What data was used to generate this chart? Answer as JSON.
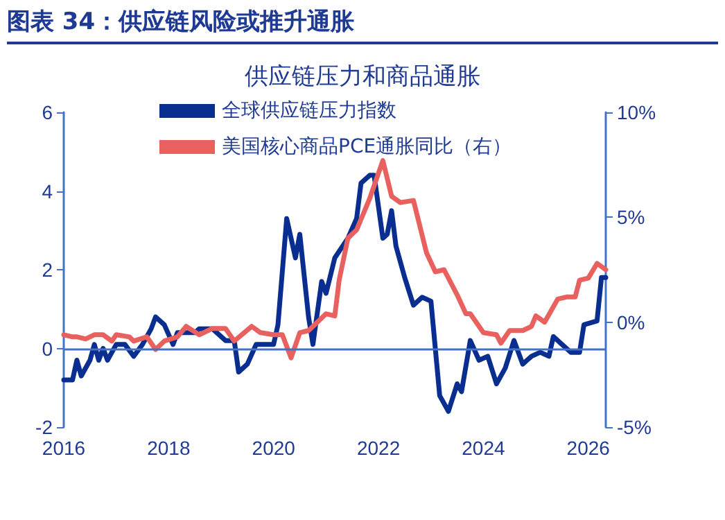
{
  "chart_data": {
    "type": "line",
    "title": "图表 34：供应链风险或推升通胀",
    "subtitle": "供应链压力和商品通胀",
    "xlim": [
      "2016-01",
      "2026-05"
    ],
    "xticks": [
      "2016",
      "2018",
      "2020",
      "2022",
      "2024",
      "2026"
    ],
    "ylim": [
      -2,
      6
    ],
    "yticks": [
      -2,
      0,
      2,
      4,
      6
    ],
    "y2lim": [
      -5,
      10
    ],
    "y2ticks": [
      {
        "value": -5,
        "label": "-5%"
      },
      {
        "value": 0,
        "label": "0%"
      },
      {
        "value": 5,
        "label": "5%"
      },
      {
        "value": 10,
        "label": "10%"
      }
    ],
    "ref_lines": [
      {
        "axis": "y",
        "value": 0,
        "color": "#4472c4"
      }
    ],
    "grid": false,
    "legend": "top left",
    "marker": "none",
    "line_style": "solid",
    "series": [
      {
        "name": "全球供应链压力指数",
        "color": "#0a2e8f",
        "x": [
          "2016-01",
          "2016-03",
          "2016-04",
          "2016-05",
          "2016-07",
          "2016-08",
          "2016-09",
          "2016-10",
          "2016-11",
          "2017-01",
          "2017-03",
          "2017-05",
          "2017-07",
          "2017-09",
          "2017-10",
          "2017-12",
          "2018-02",
          "2018-03",
          "2018-07",
          "2018-08",
          "2018-11",
          "2019-02",
          "2019-04",
          "2019-05",
          "2019-07",
          "2019-09",
          "2019-10",
          "2020-01",
          "2020-02",
          "2020-04",
          "2020-06",
          "2020-07",
          "2020-09",
          "2020-10",
          "2020-12",
          "2021-01",
          "2021-03",
          "2021-06",
          "2021-08",
          "2021-09",
          "2021-11",
          "2021-12",
          "2022-02",
          "2022-03",
          "2022-04",
          "2022-05",
          "2022-07",
          "2022-09",
          "2022-11",
          "2023-01",
          "2023-03",
          "2023-05",
          "2023-07",
          "2023-08",
          "2023-10",
          "2023-12",
          "2024-02",
          "2024-04",
          "2024-06",
          "2024-08",
          "2024-10",
          "2024-12",
          "2025-02",
          "2025-04",
          "2025-05",
          "2025-07",
          "2025-09",
          "2025-11",
          "2025-12",
          "2026-03",
          "2026-04",
          "2026-05"
        ],
        "values": [
          -0.8,
          -0.8,
          -0.3,
          -0.7,
          -0.3,
          0.1,
          -0.3,
          0,
          -0.3,
          0.1,
          0.1,
          -0.2,
          0.1,
          0.5,
          0.8,
          0.6,
          0.1,
          0.4,
          0.4,
          0.5,
          0.5,
          0.2,
          0.2,
          -0.6,
          -0.4,
          0.1,
          0.1,
          0.1,
          0.6,
          3.3,
          2.3,
          2.9,
          0.8,
          0.1,
          1.7,
          1.4,
          2.3,
          2.8,
          3.3,
          4.2,
          4.4,
          4.4,
          2.8,
          2.9,
          3.5,
          2.6,
          1.8,
          1.1,
          1.3,
          1.2,
          -1.2,
          -1.6,
          -0.9,
          -1.1,
          0.2,
          -0.3,
          -0.2,
          -0.9,
          -0.5,
          0.2,
          -0.4,
          -0.2,
          -0.1,
          -0.2,
          0.3,
          0.1,
          -0.1,
          -0.1,
          0.6,
          0.7,
          1.8,
          1.8
        ]
      },
      {
        "name": "美国核心商品PCE通胀同比（右）",
        "color": "#e8615f",
        "axis": "y2",
        "x": [
          "2016-01",
          "2016-03",
          "2016-04",
          "2016-06",
          "2016-08",
          "2016-10",
          "2016-12",
          "2017-01",
          "2017-04",
          "2017-05",
          "2017-08",
          "2017-10",
          "2017-12",
          "2018-03",
          "2018-05",
          "2018-08",
          "2018-11",
          "2019-02",
          "2019-04",
          "2019-08",
          "2019-10",
          "2020-01",
          "2020-03",
          "2020-05",
          "2020-07",
          "2020-09",
          "2020-11",
          "2021-01",
          "2021-03",
          "2021-04",
          "2021-06",
          "2021-08",
          "2021-11",
          "2022-02",
          "2022-04",
          "2022-06",
          "2022-09",
          "2022-12",
          "2023-02",
          "2023-04",
          "2023-07",
          "2023-09",
          "2023-10",
          "2024-01",
          "2024-04",
          "2024-05",
          "2024-07",
          "2024-10",
          "2024-12",
          "2025-01",
          "2025-03",
          "2025-06",
          "2025-08",
          "2025-10",
          "2025-11",
          "2026-01",
          "2026-03",
          "2026-05"
        ],
        "values": [
          -0.6,
          -0.7,
          -0.7,
          -0.8,
          -0.6,
          -0.6,
          -0.9,
          -0.6,
          -0.7,
          -0.9,
          -0.7,
          -1.3,
          -0.9,
          -0.7,
          -0.2,
          -0.6,
          -0.3,
          -0.3,
          -0.9,
          -0.2,
          -0.5,
          -0.6,
          -0.6,
          -1.7,
          -0.5,
          -0.4,
          0,
          0.4,
          0.3,
          2.0,
          4.0,
          4.4,
          5.9,
          7.7,
          6.0,
          5.7,
          5.8,
          3.3,
          2.4,
          2.5,
          1.3,
          0.4,
          0.4,
          -0.5,
          -0.6,
          -1.0,
          -0.4,
          -0.4,
          -0.2,
          0.3,
          0,
          1.1,
          1.2,
          1.2,
          2.0,
          2.1,
          2.8,
          2.5
        ]
      }
    ]
  }
}
